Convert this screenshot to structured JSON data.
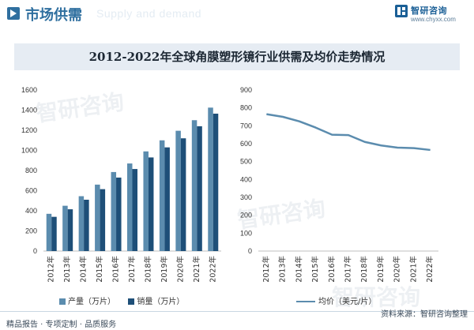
{
  "header": {
    "title": "市场供需",
    "ghost_text": "Supply and demand",
    "brand_name": "智研咨询",
    "brand_url": "www.chyxx.com"
  },
  "chart_title": "2012-2022年全球角膜塑形镜行业供需及均价走势情况",
  "watermark_text": "智研咨询",
  "colors": {
    "production": "#5b8cae",
    "sales": "#1e4f78",
    "price": "#5b8cae"
  },
  "chart_data": [
    {
      "type": "bar",
      "categories": [
        "2012年",
        "2013年",
        "2014年",
        "2015年",
        "2016年",
        "2017年",
        "2018年",
        "2019年",
        "2020年",
        "2021年",
        "2022年"
      ],
      "series": [
        {
          "name": "产量（万片）",
          "values": [
            370,
            450,
            545,
            660,
            785,
            870,
            990,
            1100,
            1195,
            1300,
            1425
          ]
        },
        {
          "name": "销量（万片）",
          "values": [
            340,
            415,
            510,
            615,
            730,
            815,
            930,
            1030,
            1120,
            1240,
            1365
          ]
        }
      ],
      "yticks": [
        0,
        200,
        400,
        600,
        800,
        1000,
        1200,
        1400,
        1600
      ],
      "ylim": [
        0,
        1600
      ],
      "legend_position": "bottom"
    },
    {
      "type": "line",
      "categories": [
        "2012年",
        "2013年",
        "2014年",
        "2015年",
        "2016年",
        "2017年",
        "2018年",
        "2019年",
        "2020年",
        "2021年",
        "2022年"
      ],
      "series": [
        {
          "name": "均价（美元/片）",
          "values": [
            765,
            750,
            725,
            690,
            650,
            648,
            610,
            590,
            578,
            575,
            565
          ]
        }
      ],
      "yticks": [
        0,
        100,
        200,
        300,
        400,
        500,
        600,
        700,
        800,
        900
      ],
      "ylim": [
        0,
        900
      ],
      "legend_position": "bottom"
    }
  ],
  "footer": {
    "left_text": "精品报告 · 专项定制 · 品质服务",
    "right_text": "资料来源：智研咨询整理"
  }
}
